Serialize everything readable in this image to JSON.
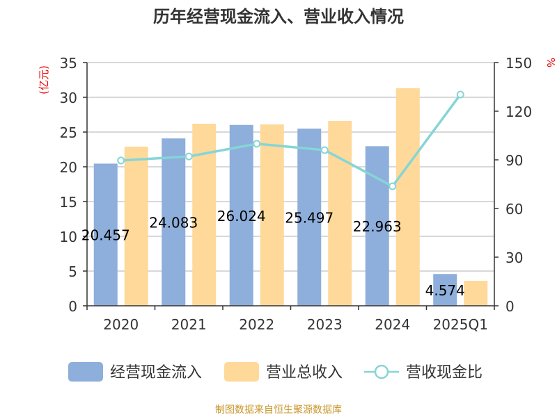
{
  "chart_data": {
    "type": "bar+line",
    "title": "历年经营现金流入、营业收入情况",
    "categories": [
      "2020",
      "2021",
      "2022",
      "2023",
      "2024",
      "2025Q1"
    ],
    "y_left": {
      "label": "(亿元)",
      "range": [
        0,
        35
      ],
      "ticks": [
        0,
        5,
        10,
        15,
        20,
        25,
        30,
        35
      ]
    },
    "y_right": {
      "label": "%",
      "range": [
        0,
        150
      ],
      "ticks": [
        0,
        30,
        60,
        90,
        120,
        150
      ]
    },
    "grid": true,
    "legend_position": "bottom",
    "series": [
      {
        "name": "经营现金流入",
        "type": "bar",
        "axis": "left",
        "color": "#8eaedb",
        "values": [
          20.457,
          24.083,
          26.024,
          25.497,
          22.963,
          4.574
        ],
        "labels": [
          "20.457",
          "24.083",
          "26.024",
          "25.497",
          "22.963",
          "4.574"
        ]
      },
      {
        "name": "营业总收入",
        "type": "bar",
        "axis": "left",
        "color": "#fed99a",
        "values": [
          22.9,
          26.2,
          26.1,
          26.6,
          31.3,
          3.6
        ]
      },
      {
        "name": "营收现金比",
        "type": "line",
        "axis": "right",
        "color": "#86d5d6",
        "values": [
          89.6,
          92.1,
          99.9,
          96.0,
          73.7,
          130.3
        ]
      }
    ]
  },
  "footer": {
    "source": "制图数据来自恒生聚源数据库"
  }
}
